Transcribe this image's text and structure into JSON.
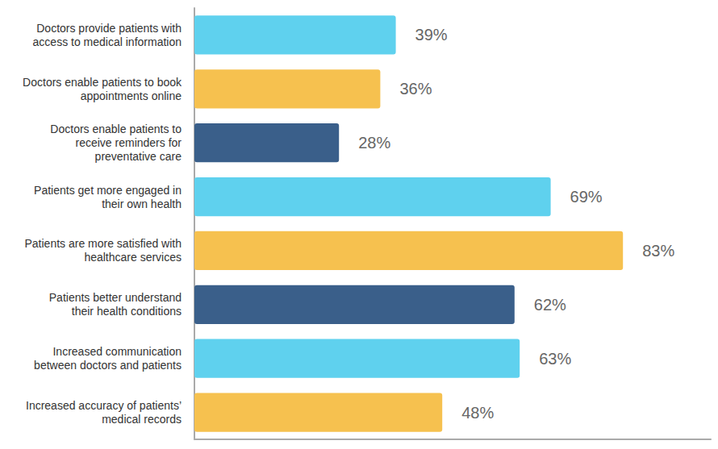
{
  "chart_data": {
    "type": "bar",
    "orientation": "horizontal",
    "categories": [
      "Doctors provide patients with\naccess to medical information",
      "Doctors enable patients to book\nappointments online",
      "Doctors enable patients to\nreceive reminders for\npreventative care",
      "Patients get more engaged in\ntheir own health",
      "Patients are more satisfied with\nhealthcare services",
      "Patients better understand\ntheir health conditions",
      "Increased communication\nbetween doctors and patients",
      "Increased accuracy of patients’\nmedical records"
    ],
    "values": [
      39,
      36,
      28,
      69,
      83,
      62,
      63,
      48
    ],
    "value_labels": [
      "39%",
      "36%",
      "28%",
      "69%",
      "83%",
      "62%",
      "63%",
      "48%"
    ],
    "colors": [
      "#5fd1ee",
      "#f6c14f",
      "#3a5f8a",
      "#5fd1ee",
      "#f6c14f",
      "#3a5f8a",
      "#5fd1ee",
      "#f6c14f"
    ],
    "xlim": [
      0,
      100
    ],
    "tick_labels": false,
    "data_labels": true,
    "grid": false
  }
}
